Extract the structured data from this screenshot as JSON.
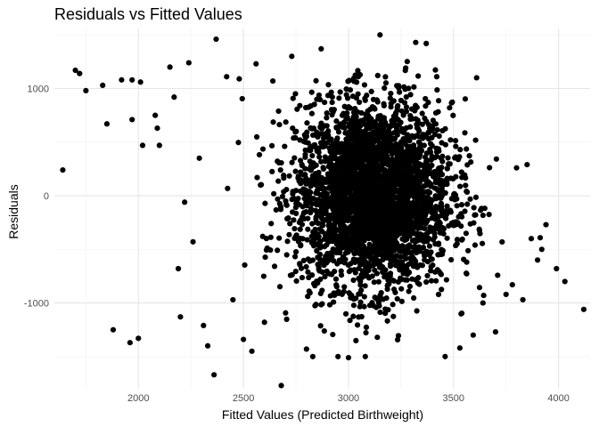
{
  "chart_data": {
    "type": "scatter",
    "title": "Residuals vs Fitted Values",
    "xlabel": "Fitted Values (Predicted Birthweight)",
    "ylabel": "Residuals",
    "xlim": [
      1600,
      4150
    ],
    "ylim": [
      -1800,
      1560
    ],
    "x_ticks": [
      2000,
      2500,
      3000,
      3500,
      4000
    ],
    "x_tick_labels": [
      "2000",
      "2500",
      "3000",
      "3500",
      "4000"
    ],
    "y_ticks": [
      -1000,
      0,
      1000
    ],
    "y_tick_labels": [
      "-1000",
      "0",
      "1000"
    ],
    "grid": true,
    "legend": "none",
    "point_color": "#000000",
    "dense_cluster": {
      "center_x": 3120,
      "center_y": 0,
      "spread_x": 185,
      "spread_y": 430,
      "approx_points": 3400
    },
    "points": [
      {
        "x": 1640,
        "y": 240
      },
      {
        "x": 1700,
        "y": 1170
      },
      {
        "x": 1720,
        "y": 1140
      },
      {
        "x": 1750,
        "y": 980
      },
      {
        "x": 1830,
        "y": 1030
      },
      {
        "x": 1850,
        "y": 670
      },
      {
        "x": 1880,
        "y": -1250
      },
      {
        "x": 1920,
        "y": 1080
      },
      {
        "x": 1960,
        "y": -1370
      },
      {
        "x": 1970,
        "y": 1080
      },
      {
        "x": 1970,
        "y": 710
      },
      {
        "x": 2000,
        "y": -1330
      },
      {
        "x": 2010,
        "y": 1060
      },
      {
        "x": 2020,
        "y": 470
      },
      {
        "x": 2080,
        "y": 750
      },
      {
        "x": 2090,
        "y": 630
      },
      {
        "x": 2100,
        "y": 470
      },
      {
        "x": 2150,
        "y": 1200
      },
      {
        "x": 2170,
        "y": 920
      },
      {
        "x": 2190,
        "y": -680
      },
      {
        "x": 2200,
        "y": -1130
      },
      {
        "x": 2220,
        "y": -60
      },
      {
        "x": 2240,
        "y": 1240
      },
      {
        "x": 2260,
        "y": -430
      },
      {
        "x": 2290,
        "y": 350
      },
      {
        "x": 2310,
        "y": -1210
      },
      {
        "x": 2330,
        "y": -1400
      },
      {
        "x": 2360,
        "y": -1670
      },
      {
        "x": 2370,
        "y": 1460
      },
      {
        "x": 2420,
        "y": 1110
      },
      {
        "x": 2450,
        "y": -970
      },
      {
        "x": 2480,
        "y": 1090
      },
      {
        "x": 2500,
        "y": -1340
      },
      {
        "x": 2540,
        "y": -1450
      },
      {
        "x": 2560,
        "y": 1230
      },
      {
        "x": 2600,
        "y": -1180
      },
      {
        "x": 2640,
        "y": 1070
      },
      {
        "x": 2680,
        "y": -1770
      },
      {
        "x": 2730,
        "y": 1300
      },
      {
        "x": 2800,
        "y": -1430
      },
      {
        "x": 2830,
        "y": -1500
      },
      {
        "x": 2870,
        "y": 1370
      },
      {
        "x": 2950,
        "y": -1500
      },
      {
        "x": 3000,
        "y": -1510
      },
      {
        "x": 3080,
        "y": -1500
      },
      {
        "x": 3150,
        "y": 1500
      },
      {
        "x": 3320,
        "y": 1430
      },
      {
        "x": 3370,
        "y": 1420
      },
      {
        "x": 3420,
        "y": 1110
      },
      {
        "x": 3460,
        "y": -1500
      },
      {
        "x": 3530,
        "y": -1420
      },
      {
        "x": 3610,
        "y": 1100
      },
      {
        "x": 3640,
        "y": -1000
      },
      {
        "x": 3700,
        "y": -1270
      },
      {
        "x": 3750,
        "y": -920
      },
      {
        "x": 3780,
        "y": -830
      },
      {
        "x": 3800,
        "y": 260
      },
      {
        "x": 3830,
        "y": -970
      },
      {
        "x": 3850,
        "y": 290
      },
      {
        "x": 3870,
        "y": -400
      },
      {
        "x": 3900,
        "y": -600
      },
      {
        "x": 3920,
        "y": -500
      },
      {
        "x": 3940,
        "y": -270
      },
      {
        "x": 3990,
        "y": -680
      },
      {
        "x": 4030,
        "y": -800
      },
      {
        "x": 4120,
        "y": -1060
      }
    ]
  }
}
